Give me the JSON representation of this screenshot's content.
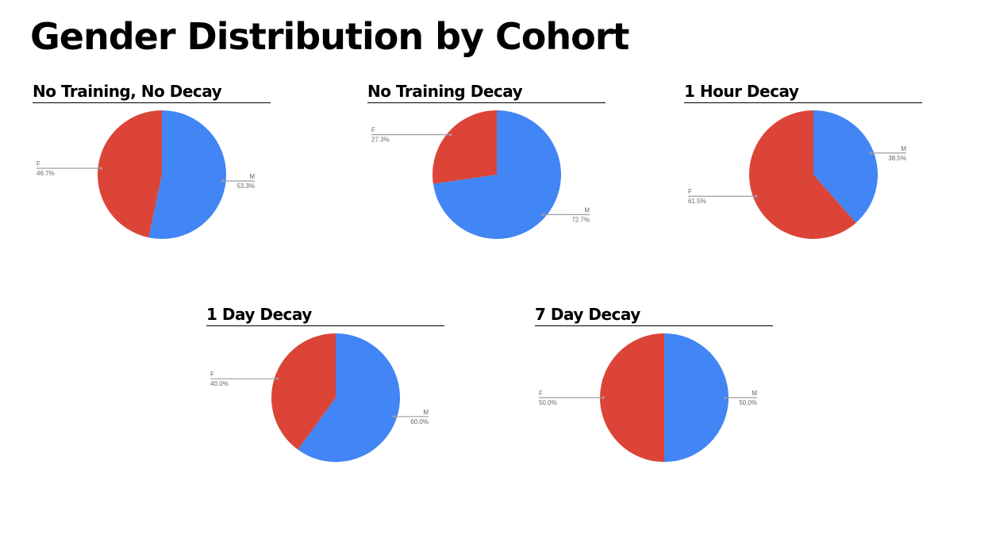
{
  "title": "Gender Distribution by Cohort",
  "colors": {
    "M": "#4285f4",
    "F": "#db4437",
    "leader": "#9e9e9e"
  },
  "chart_data": [
    {
      "type": "pie",
      "title": "No Training, No Decay",
      "slices": [
        {
          "label": "M",
          "value": 53.3,
          "pct": "53.3%"
        },
        {
          "label": "F",
          "value": 46.7,
          "pct": "46.7%"
        }
      ]
    },
    {
      "type": "pie",
      "title": "No Training Decay",
      "slices": [
        {
          "label": "M",
          "value": 72.7,
          "pct": "72.7%"
        },
        {
          "label": "F",
          "value": 27.3,
          "pct": "27.3%"
        }
      ]
    },
    {
      "type": "pie",
      "title": "1 Hour Decay",
      "slices": [
        {
          "label": "M",
          "value": 38.5,
          "pct": "38.5%"
        },
        {
          "label": "F",
          "value": 61.5,
          "pct": "61.5%"
        }
      ]
    },
    {
      "type": "pie",
      "title": "1 Day Decay",
      "slices": [
        {
          "label": "M",
          "value": 60.0,
          "pct": "60.0%"
        },
        {
          "label": "F",
          "value": 40.0,
          "pct": "40.0%"
        }
      ]
    },
    {
      "type": "pie",
      "title": "7 Day Decay",
      "slices": [
        {
          "label": "M",
          "value": 50.0,
          "pct": "50.0%"
        },
        {
          "label": "F",
          "value": 50.0,
          "pct": "50.0%"
        }
      ]
    }
  ]
}
